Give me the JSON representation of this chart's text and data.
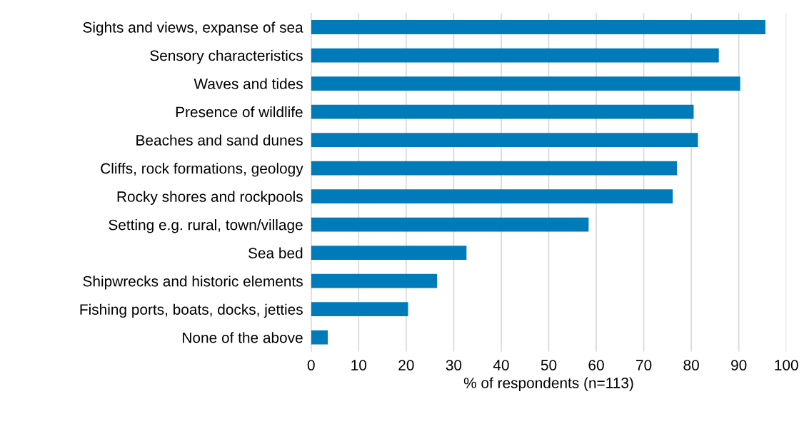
{
  "chart_data": {
    "type": "bar",
    "orientation": "horizontal",
    "xlabel": "% of respondents (n=113)",
    "categories": [
      "Sights and views, expanse of sea",
      "Sensory characteristics",
      "Waves and tides",
      "Presence of wildlife",
      "Beaches and sand dunes",
      "Cliffs, rock formations, geology",
      "Rocky shores and rockpools",
      "Setting e.g. rural, town/village",
      "Sea bed",
      "Shipwrecks and historic elements",
      "Fishing ports, boats, docks, jetties",
      "None of the above"
    ],
    "values": [
      95.6,
      85.8,
      90.3,
      80.5,
      81.4,
      77.0,
      76.1,
      58.4,
      32.7,
      26.5,
      20.4,
      3.5
    ],
    "color": "#007bba",
    "xlim": [
      0,
      100
    ],
    "xticks": [
      0,
      10,
      20,
      30,
      40,
      50,
      60,
      70,
      80,
      90,
      100
    ],
    "grid": "x",
    "legend": false
  }
}
